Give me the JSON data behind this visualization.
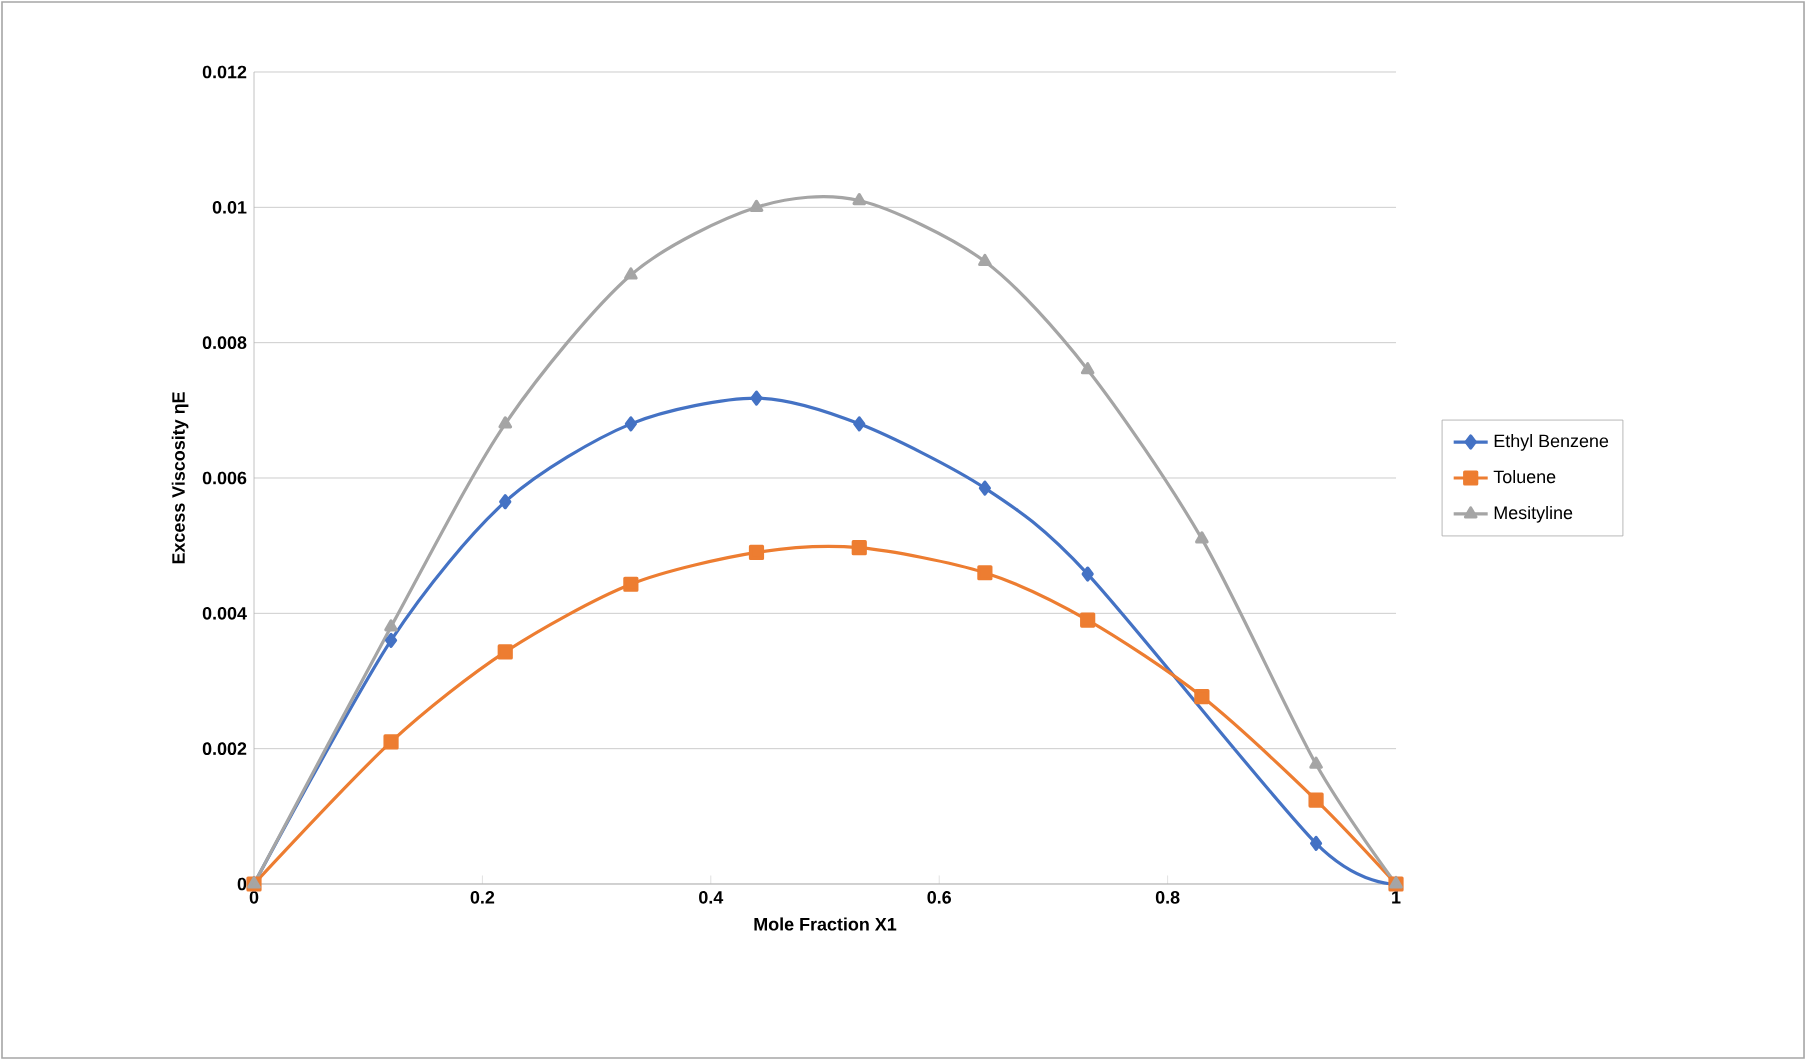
{
  "chart_data": {
    "type": "line",
    "xlabel": "Mole Fraction X1",
    "ylabel": "Excess Viscosity ηE",
    "xlim": [
      0,
      1
    ],
    "xticks": [
      0,
      0.2,
      0.4,
      0.6,
      0.8,
      1
    ],
    "ylim": [
      0,
      0.012
    ],
    "yticks": [
      0,
      0.002,
      0.004,
      0.006,
      0.008,
      0.01,
      0.012
    ],
    "grid": "y",
    "legend": "right",
    "x": [
      0,
      0.12,
      0.22,
      0.33,
      0.44,
      0.53,
      0.64,
      0.73,
      0.83,
      0.93,
      1
    ],
    "series": [
      {
        "name": "Ethyl Benzene",
        "color": "#4472c4",
        "marker": "diamond",
        "values": [
          0,
          0.0036,
          0.00565,
          0.0068,
          0.00718,
          0.0068,
          0.00585,
          0.00458,
          null,
          0.0006,
          0
        ]
      },
      {
        "name": "Toluene",
        "color": "#ed7d31",
        "marker": "square",
        "values": [
          0,
          0.0021,
          0.00343,
          0.00443,
          0.0049,
          0.00497,
          0.0046,
          0.0039,
          0.00277,
          0.00124,
          0
        ]
      },
      {
        "name": "Mesityline",
        "color": "#a5a5a5",
        "marker": "triangle",
        "values": [
          0,
          0.0038,
          0.0068,
          0.009,
          0.01,
          0.0101,
          0.0092,
          0.0076,
          0.0051,
          0.00177,
          0
        ]
      }
    ]
  }
}
